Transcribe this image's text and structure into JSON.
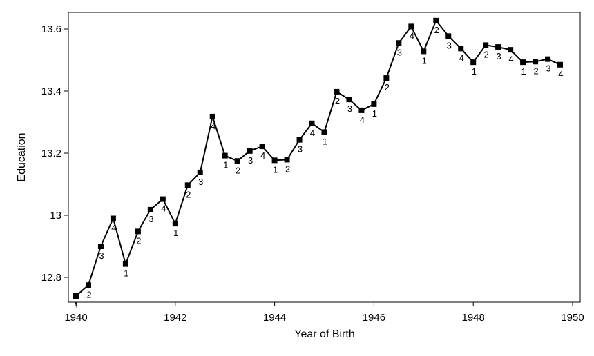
{
  "chart_data": {
    "type": "line",
    "xlabel": "Year of Birth",
    "ylabel": "Education",
    "xlim": [
      1940,
      1950
    ],
    "ylim": [
      12.7,
      13.63
    ],
    "x_ticks": [
      1940,
      1942,
      1944,
      1946,
      1948,
      1950
    ],
    "x_tick_labels": [
      "1940",
      "1942",
      "1944",
      "1946",
      "1948",
      "1950"
    ],
    "y_ticks": [
      12.8,
      13.0,
      13.2,
      13.4,
      13.6
    ],
    "y_tick_labels": [
      "12.8",
      "13",
      "13.2",
      "13.4",
      "13.6"
    ],
    "grid": false,
    "line_color": "#000000",
    "marker": "square",
    "points": [
      {
        "x": 1940.0,
        "y": 12.74,
        "label": "1"
      },
      {
        "x": 1940.25,
        "y": 12.775,
        "label": "2"
      },
      {
        "x": 1940.5,
        "y": 12.9,
        "label": "3"
      },
      {
        "x": 1940.75,
        "y": 12.99,
        "label": "4"
      },
      {
        "x": 1941.0,
        "y": 12.843,
        "label": "1"
      },
      {
        "x": 1941.25,
        "y": 12.948,
        "label": "2"
      },
      {
        "x": 1941.5,
        "y": 13.018,
        "label": "3"
      },
      {
        "x": 1941.75,
        "y": 13.052,
        "label": "4"
      },
      {
        "x": 1942.0,
        "y": 12.973,
        "label": "1"
      },
      {
        "x": 1942.25,
        "y": 13.097,
        "label": "2"
      },
      {
        "x": 1942.5,
        "y": 13.138,
        "label": "3"
      },
      {
        "x": 1942.75,
        "y": 13.318,
        "label": "4"
      },
      {
        "x": 1943.0,
        "y": 13.192,
        "label": "1"
      },
      {
        "x": 1943.25,
        "y": 13.175,
        "label": "2"
      },
      {
        "x": 1943.5,
        "y": 13.207,
        "label": "3"
      },
      {
        "x": 1943.75,
        "y": 13.222,
        "label": "4"
      },
      {
        "x": 1944.0,
        "y": 13.177,
        "label": "1"
      },
      {
        "x": 1944.25,
        "y": 13.179,
        "label": "2"
      },
      {
        "x": 1944.5,
        "y": 13.243,
        "label": "3"
      },
      {
        "x": 1944.75,
        "y": 13.296,
        "label": "4"
      },
      {
        "x": 1945.0,
        "y": 13.268,
        "label": "1"
      },
      {
        "x": 1945.25,
        "y": 13.398,
        "label": "2"
      },
      {
        "x": 1945.5,
        "y": 13.373,
        "label": "3"
      },
      {
        "x": 1945.75,
        "y": 13.338,
        "label": "4"
      },
      {
        "x": 1946.0,
        "y": 13.358,
        "label": "1"
      },
      {
        "x": 1946.25,
        "y": 13.442,
        "label": "2"
      },
      {
        "x": 1946.5,
        "y": 13.555,
        "label": "3"
      },
      {
        "x": 1946.75,
        "y": 13.608,
        "label": "4"
      },
      {
        "x": 1947.0,
        "y": 13.528,
        "label": "1"
      },
      {
        "x": 1947.25,
        "y": 13.627,
        "label": "2"
      },
      {
        "x": 1947.5,
        "y": 13.577,
        "label": "3"
      },
      {
        "x": 1947.75,
        "y": 13.537,
        "label": "4"
      },
      {
        "x": 1948.0,
        "y": 13.493,
        "label": "1"
      },
      {
        "x": 1948.25,
        "y": 13.548,
        "label": "2"
      },
      {
        "x": 1948.5,
        "y": 13.542,
        "label": "3"
      },
      {
        "x": 1948.75,
        "y": 13.533,
        "label": "4"
      },
      {
        "x": 1949.0,
        "y": 13.493,
        "label": "1"
      },
      {
        "x": 1949.25,
        "y": 13.495,
        "label": "2"
      },
      {
        "x": 1949.5,
        "y": 13.503,
        "label": "3"
      },
      {
        "x": 1949.75,
        "y": 13.485,
        "label": "4"
      }
    ]
  }
}
